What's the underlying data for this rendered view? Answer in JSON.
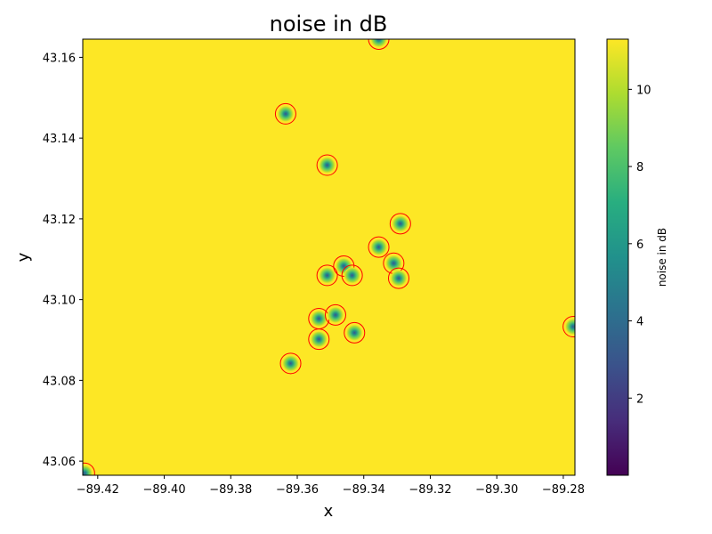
{
  "chart_data": {
    "type": "heatmap",
    "title": "noise in dB",
    "xlabel": "x",
    "ylabel": "y",
    "xlim": [
      -89.4245,
      -89.2765
    ],
    "ylim": [
      43.0565,
      43.1645
    ],
    "xticks": [
      {
        "value": -89.42,
        "label": "−89.42"
      },
      {
        "value": -89.4,
        "label": "−89.40"
      },
      {
        "value": -89.38,
        "label": "−89.38"
      },
      {
        "value": -89.36,
        "label": "−89.36"
      },
      {
        "value": -89.34,
        "label": "−89.34"
      },
      {
        "value": -89.32,
        "label": "−89.32"
      },
      {
        "value": -89.3,
        "label": "−89.30"
      },
      {
        "value": -89.28,
        "label": "−89.28"
      }
    ],
    "yticks": [
      {
        "value": 43.06,
        "label": "43.06"
      },
      {
        "value": 43.08,
        "label": "43.08"
      },
      {
        "value": 43.1,
        "label": "43.10"
      },
      {
        "value": 43.12,
        "label": "43.12"
      },
      {
        "value": 43.14,
        "label": "43.14"
      },
      {
        "value": 43.16,
        "label": "43.16"
      }
    ],
    "colorbar": {
      "label": "noise in dB",
      "colormap": "viridis",
      "range": [
        0,
        11.3
      ],
      "ticks": [
        {
          "value": 2,
          "label": "2"
        },
        {
          "value": 4,
          "label": "4"
        },
        {
          "value": 6,
          "label": "6"
        },
        {
          "value": 8,
          "label": "8"
        },
        {
          "value": 10,
          "label": "10"
        }
      ]
    },
    "background_value": 11.3,
    "marker_color": "#ff0000",
    "sources": [
      {
        "x": -89.3355,
        "y": 43.1645
      },
      {
        "x": -89.3635,
        "y": 43.146
      },
      {
        "x": -89.351,
        "y": 43.1333
      },
      {
        "x": -89.329,
        "y": 43.1188
      },
      {
        "x": -89.3355,
        "y": 43.113
      },
      {
        "x": -89.346,
        "y": 43.1083
      },
      {
        "x": -89.331,
        "y": 43.109
      },
      {
        "x": -89.351,
        "y": 43.106
      },
      {
        "x": -89.3435,
        "y": 43.106
      },
      {
        "x": -89.3295,
        "y": 43.1053
      },
      {
        "x": -89.3535,
        "y": 43.0953
      },
      {
        "x": -89.3485,
        "y": 43.0962
      },
      {
        "x": -89.3428,
        "y": 43.0918
      },
      {
        "x": -89.3535,
        "y": 43.0902
      },
      {
        "x": -89.362,
        "y": 43.0842
      },
      {
        "x": -89.277,
        "y": 43.0933
      },
      {
        "x": -89.424,
        "y": 43.057
      }
    ]
  }
}
